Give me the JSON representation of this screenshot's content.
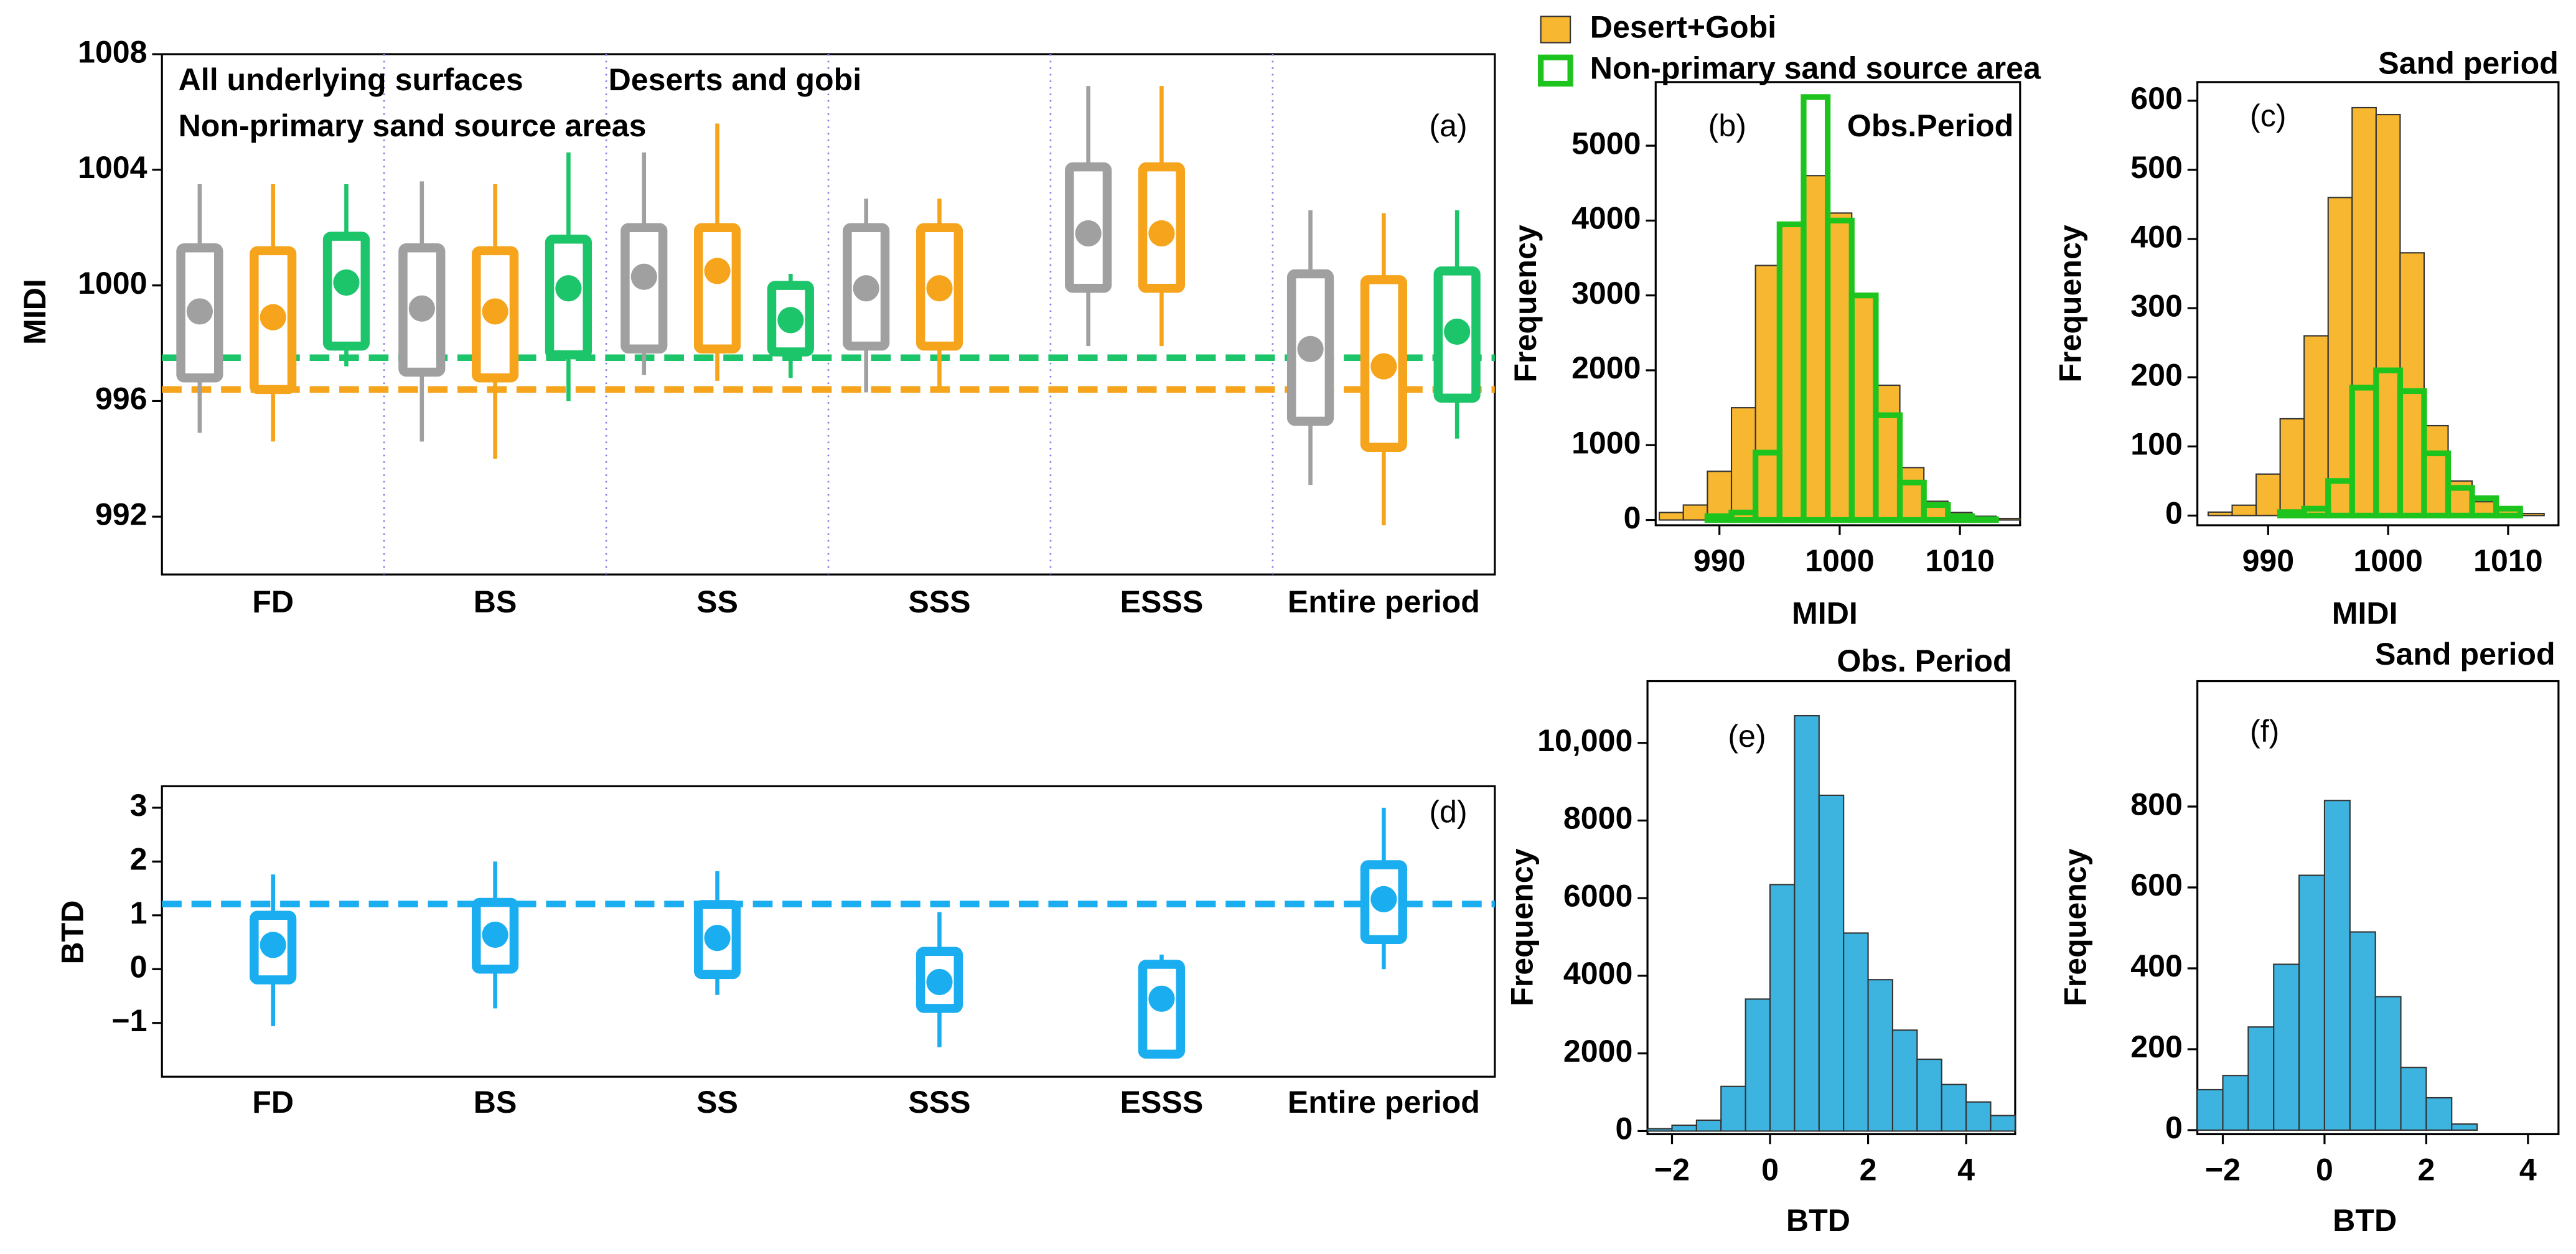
{
  "chart_data": [
    {
      "type": "box",
      "panel_label": "(a)",
      "ylabel": "MIDI",
      "categories": [
        "FD",
        "BS",
        "SS",
        "SSS",
        "ESSS",
        "Entire period"
      ],
      "ylim": [
        990,
        1008
      ],
      "yticks": [
        992,
        996,
        1000,
        1004,
        1008
      ],
      "separators": true,
      "series": [
        {
          "name": "All underlying surfaces",
          "color": "#a0a0a0",
          "whisker_low": [
            994.9,
            994.6,
            996.9,
            996.3,
            997.9,
            993.1
          ],
          "q1": [
            996.8,
            997.0,
            997.8,
            997.9,
            999.9,
            995.3
          ],
          "q3": [
            1001.3,
            1001.3,
            1002.0,
            1002.0,
            1004.1,
            1000.4
          ],
          "whisker_high": [
            1003.5,
            1003.6,
            1004.6,
            1003.0,
            1006.9,
            1002.6
          ],
          "mean": [
            999.1,
            999.2,
            1000.3,
            999.9,
            1001.8,
            997.8
          ]
        },
        {
          "name": "Deserts and gobi",
          "color": "#f5a41c",
          "whisker_low": [
            994.6,
            994.0,
            996.7,
            996.3,
            997.9,
            991.7
          ],
          "q1": [
            996.4,
            996.8,
            997.8,
            997.9,
            999.9,
            994.4
          ],
          "q3": [
            1001.2,
            1001.2,
            1002.0,
            1002.0,
            1004.1,
            1000.2
          ],
          "whisker_high": [
            1003.5,
            1003.5,
            1005.6,
            1003.0,
            1006.9,
            1002.5
          ],
          "mean": [
            998.9,
            999.1,
            1000.5,
            999.9,
            1001.8,
            997.2
          ]
        },
        {
          "name": "Non-primary sand source areas",
          "color": "#1cc46a",
          "whisker_low": [
            997.2,
            996.0,
            996.8,
            null,
            null,
            994.7
          ],
          "q1": [
            997.9,
            997.6,
            997.7,
            null,
            null,
            996.1
          ],
          "q3": [
            1001.7,
            1001.6,
            1000.0,
            null,
            null,
            1000.5
          ],
          "whisker_high": [
            1003.5,
            1004.6,
            1000.4,
            null,
            null,
            1002.6
          ],
          "mean": [
            1000.1,
            999.9,
            998.8,
            null,
            null,
            998.4
          ]
        }
      ],
      "reference_lines": [
        {
          "value": 997.5,
          "color": "#1cc46a"
        },
        {
          "value": 996.4,
          "color": "#f5a41c"
        }
      ]
    },
    {
      "type": "histogram",
      "panel_label": "(b)",
      "title": "Obs.Period",
      "xlabel": "MIDI",
      "ylabel": "Frequency",
      "bins": [
        985,
        987,
        989,
        991,
        993,
        995,
        997,
        999,
        1001,
        1003,
        1005,
        1007,
        1009,
        1011,
        1013,
        1015
      ],
      "xlim": [
        984.7,
        1015
      ],
      "xticks": [
        990,
        1000,
        1010
      ],
      "ylim": [
        -70,
        5850
      ],
      "yticks": [
        0,
        1000,
        2000,
        3000,
        4000,
        5000
      ],
      "series": [
        {
          "name": "Desert+Gobi",
          "color": "#f7b731",
          "style": "filled",
          "values": [
            100,
            200,
            650,
            1500,
            3400,
            3950,
            4600,
            4100,
            3000,
            1800,
            700,
            250,
            100,
            50,
            20
          ]
        },
        {
          "name": "Non-primary sand source area",
          "color": "#1ec41e",
          "style": "outline",
          "values": [
            0,
            0,
            50,
            100,
            900,
            3950,
            5650,
            4000,
            3000,
            1400,
            500,
            200,
            50,
            10,
            0
          ]
        }
      ]
    },
    {
      "type": "histogram",
      "panel_label": "(c)",
      "title": "Sand period",
      "xlabel": "MIDI",
      "ylabel": "Frequency",
      "bins": [
        985,
        987,
        989,
        991,
        993,
        995,
        997,
        999,
        1001,
        1003,
        1005,
        1007,
        1009,
        1011,
        1013,
        1015
      ],
      "xlim": [
        984.1,
        1014.2
      ],
      "xticks": [
        990,
        1000,
        1010
      ],
      "ylim": [
        -14,
        627
      ],
      "yticks": [
        0,
        100,
        200,
        300,
        400,
        500,
        600
      ],
      "series": [
        {
          "color": "#f7b731",
          "style": "filled",
          "values": [
            5,
            15,
            60,
            140,
            260,
            460,
            590,
            580,
            380,
            130,
            50,
            20,
            8,
            3,
            0
          ]
        },
        {
          "color": "#1ec41e",
          "style": "outline",
          "values": [
            0,
            0,
            0,
            5,
            10,
            50,
            185,
            210,
            180,
            90,
            40,
            25,
            10,
            0,
            0
          ]
        }
      ]
    },
    {
      "type": "box",
      "panel_label": "(d)",
      "ylabel": "BTD",
      "categories": [
        "FD",
        "BS",
        "SS",
        "SSS",
        "ESSS",
        "Entire period"
      ],
      "ylim": [
        -2,
        3.4
      ],
      "yticks": [
        {
          "value": -1,
          "label": "−1"
        },
        0,
        1,
        2,
        3
      ],
      "separators": false,
      "series": [
        {
          "color": "#1aaef0",
          "whisker_low": [
            -1.06,
            -0.73,
            -0.48,
            -1.45,
            -1.58,
            0
          ],
          "q1": [
            -0.2,
            0,
            -0.1,
            -0.73,
            -1.58,
            0.55
          ],
          "q3": [
            1.0,
            1.24,
            1.2,
            0.33,
            0.09,
            1.94
          ],
          "whisker_high": [
            1.76,
            2.0,
            1.82,
            1.06,
            0.27,
            3.0
          ],
          "mean": [
            0.45,
            0.64,
            0.58,
            -0.24,
            -0.55,
            1.3
          ]
        }
      ],
      "reference_lines": [
        {
          "value": 1.21,
          "color": "#1aaef0"
        }
      ]
    },
    {
      "type": "histogram",
      "panel_label": "(e)",
      "title": "Obs. Period",
      "xlabel": "BTD",
      "ylabel": "Frequency",
      "bins": [
        -2.5,
        -2,
        -1.5,
        -1,
        -0.5,
        0,
        0.5,
        1,
        1.5,
        2,
        2.5,
        3,
        3.5,
        4,
        4.5,
        5
      ],
      "xlim": [
        -2.5,
        5
      ],
      "xticks": [
        {
          "value": -2,
          "label": "−2"
        },
        0,
        2,
        4
      ],
      "ylim": [
        -80,
        11590
      ],
      "yticks": [
        0,
        2000,
        4000,
        6000,
        8000,
        {
          "value": 10000,
          "label": "10,000"
        }
      ],
      "series": [
        {
          "color": "#3db4e0",
          "style": "filled",
          "values": [
            60,
            150,
            280,
            1150,
            3400,
            6350,
            10700,
            8650,
            5100,
            3900,
            2600,
            1850,
            1200,
            750,
            400
          ]
        }
      ]
    },
    {
      "type": "histogram",
      "panel_label": "(f)",
      "title": "Sand period",
      "xlabel": "BTD",
      "ylabel": "Frequency",
      "bins": [
        -2.5,
        -2,
        -1.5,
        -1,
        -0.5,
        0,
        0.5,
        1,
        1.5,
        2,
        2.5,
        3
      ],
      "xlim": [
        -2.5,
        4.6
      ],
      "xticks": [
        {
          "value": -2,
          "label": "−2"
        },
        0,
        2,
        4
      ],
      "ylim": [
        -10,
        1110
      ],
      "yticks": [
        0,
        200,
        400,
        600,
        800
      ],
      "series": [
        {
          "color": "#3db4e0",
          "style": "filled",
          "values": [
            100,
            135,
            255,
            410,
            630,
            815,
            490,
            330,
            155,
            80,
            15
          ]
        }
      ]
    }
  ]
}
